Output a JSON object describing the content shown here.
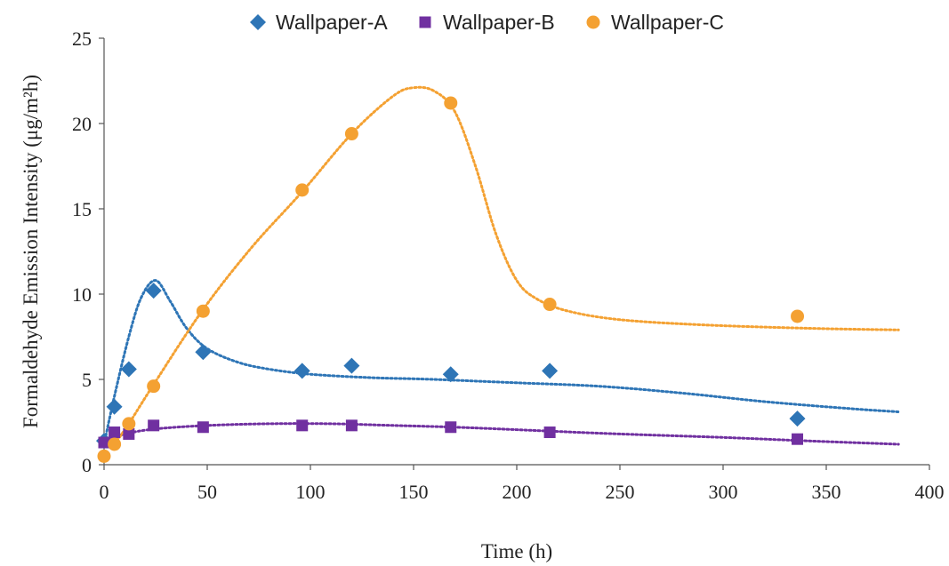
{
  "chart_data": {
    "type": "scatter",
    "title": "",
    "xlabel": "Time (h)",
    "ylabel": "Formaldehyde Emission Intensity (μg/m²h)",
    "xlim": [
      0,
      400
    ],
    "ylim": [
      0,
      25
    ],
    "xticks": [
      0,
      50,
      100,
      150,
      200,
      250,
      300,
      350,
      400
    ],
    "yticks": [
      0,
      5,
      10,
      15,
      20,
      25
    ],
    "grid": false,
    "legend_position": "top",
    "series": [
      {
        "name": "Wallpaper-A",
        "marker": "diamond",
        "color": "#2E75B6",
        "points": [
          [
            0,
            1.4
          ],
          [
            5,
            3.4
          ],
          [
            12,
            5.6
          ],
          [
            24,
            10.2
          ],
          [
            48,
            6.6
          ],
          [
            96,
            5.5
          ],
          [
            120,
            5.8
          ],
          [
            168,
            5.3
          ],
          [
            216,
            5.5
          ],
          [
            336,
            2.7
          ]
        ],
        "trend": [
          [
            0,
            1.2
          ],
          [
            5,
            4.0
          ],
          [
            12,
            7.5
          ],
          [
            18,
            9.8
          ],
          [
            25,
            10.8
          ],
          [
            32,
            9.6
          ],
          [
            40,
            8.0
          ],
          [
            50,
            6.8
          ],
          [
            65,
            6.0
          ],
          [
            80,
            5.6
          ],
          [
            100,
            5.3
          ],
          [
            130,
            5.1
          ],
          [
            160,
            5.0
          ],
          [
            200,
            4.8
          ],
          [
            240,
            4.6
          ],
          [
            280,
            4.2
          ],
          [
            320,
            3.7
          ],
          [
            360,
            3.3
          ],
          [
            385,
            3.1
          ]
        ]
      },
      {
        "name": "Wallpaper-B",
        "marker": "square",
        "color": "#7030A0",
        "points": [
          [
            0,
            1.3
          ],
          [
            5,
            1.9
          ],
          [
            12,
            1.8
          ],
          [
            24,
            2.3
          ],
          [
            48,
            2.2
          ],
          [
            96,
            2.3
          ],
          [
            120,
            2.3
          ],
          [
            168,
            2.2
          ],
          [
            216,
            1.9
          ],
          [
            336,
            1.5
          ]
        ],
        "trend": [
          [
            0,
            1.4
          ],
          [
            10,
            1.8
          ],
          [
            25,
            2.1
          ],
          [
            50,
            2.3
          ],
          [
            80,
            2.4
          ],
          [
            110,
            2.4
          ],
          [
            140,
            2.3
          ],
          [
            170,
            2.2
          ],
          [
            210,
            2.0
          ],
          [
            250,
            1.8
          ],
          [
            300,
            1.6
          ],
          [
            340,
            1.4
          ],
          [
            385,
            1.2
          ]
        ]
      },
      {
        "name": "Wallpaper-C",
        "marker": "circle",
        "color": "#F4A132",
        "points": [
          [
            0,
            0.5
          ],
          [
            5,
            1.2
          ],
          [
            12,
            2.4
          ],
          [
            24,
            4.6
          ],
          [
            48,
            9.0
          ],
          [
            96,
            16.1
          ],
          [
            120,
            19.4
          ],
          [
            168,
            21.2
          ],
          [
            216,
            9.4
          ],
          [
            336,
            8.7
          ]
        ],
        "trend": [
          [
            5,
            1.2
          ],
          [
            12,
            2.4
          ],
          [
            24,
            4.7
          ],
          [
            48,
            9.1
          ],
          [
            72,
            12.8
          ],
          [
            96,
            16.0
          ],
          [
            120,
            19.4
          ],
          [
            140,
            21.6
          ],
          [
            150,
            22.1
          ],
          [
            160,
            21.9
          ],
          [
            170,
            20.7
          ],
          [
            180,
            17.5
          ],
          [
            190,
            13.5
          ],
          [
            200,
            10.8
          ],
          [
            210,
            9.7
          ],
          [
            225,
            9.0
          ],
          [
            250,
            8.5
          ],
          [
            290,
            8.2
          ],
          [
            340,
            8.0
          ],
          [
            385,
            7.9
          ]
        ]
      }
    ]
  }
}
